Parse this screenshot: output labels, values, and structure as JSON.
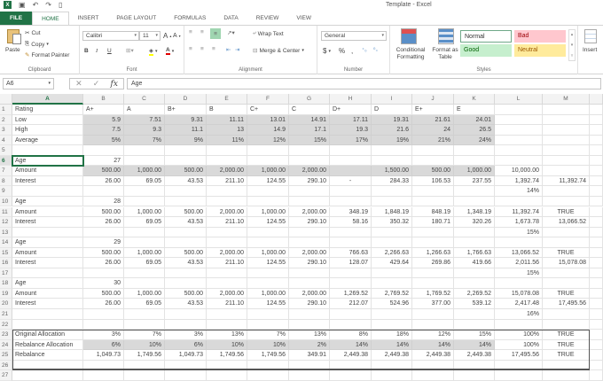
{
  "window": {
    "title": "Template - Excel"
  },
  "qat": {
    "save": "save-icon",
    "undo": "↶",
    "redo": "↷",
    "new": "new-file-icon"
  },
  "tabs": [
    "FILE",
    "HOME",
    "INSERT",
    "PAGE LAYOUT",
    "FORMULAS",
    "DATA",
    "REVIEW",
    "VIEW"
  ],
  "ribbon": {
    "clipboard": {
      "label": "Clipboard",
      "paste": "Paste",
      "cut": "Cut",
      "copy": "Copy",
      "format_painter": "Format Painter"
    },
    "font": {
      "label": "Font",
      "name": "Calibri",
      "size": "11",
      "bold": "B",
      "italic": "I",
      "underline": "U"
    },
    "alignment": {
      "label": "Alignment",
      "wrap_text": "Wrap Text",
      "merge_center": "Merge & Center"
    },
    "number": {
      "label": "Number",
      "format": "General",
      "currency": "$",
      "percent": "%",
      "comma": ","
    },
    "styles": {
      "label": "Styles",
      "conditional": "Conditional Formatting",
      "format_table": "Format as Table",
      "normal": "Normal",
      "bad": "Bad",
      "good": "Good",
      "neutral": "Neutral"
    },
    "cells": {
      "insert": "Insert"
    }
  },
  "formula_bar": {
    "name_box": "A6",
    "value": "Age",
    "fx": "fx"
  },
  "columns": [
    "A",
    "B",
    "C",
    "D",
    "E",
    "F",
    "G",
    "H",
    "I",
    "J",
    "K",
    "L",
    "M"
  ],
  "rows": [
    {
      "n": "1",
      "cells": [
        "Rating",
        "A+",
        "A",
        "B+",
        "B",
        "C+",
        "C",
        "D+",
        "D",
        "E+",
        "E",
        "",
        ""
      ]
    },
    {
      "n": "2",
      "cells": [
        "Low",
        "5.9",
        "7.51",
        "9.31",
        "11.11",
        "13.01",
        "14.91",
        "17.11",
        "19.31",
        "21.61",
        "24.01",
        "",
        ""
      ]
    },
    {
      "n": "3",
      "cells": [
        "High",
        "7.5",
        "9.3",
        "11.1",
        "13",
        "14.9",
        "17.1",
        "19.3",
        "21.6",
        "24",
        "26.5",
        "",
        ""
      ]
    },
    {
      "n": "4",
      "cells": [
        "Average",
        "5%",
        "7%",
        "9%",
        "11%",
        "12%",
        "15%",
        "17%",
        "19%",
        "21%",
        "24%",
        "",
        ""
      ]
    },
    {
      "n": "5",
      "cells": [
        "",
        "",
        "",
        "",
        "",
        "",
        "",
        "",
        "",
        "",
        "",
        "",
        ""
      ]
    },
    {
      "n": "6",
      "cells": [
        "Age",
        "27",
        "",
        "",
        "",
        "",
        "",
        "",
        "",
        "",
        "",
        "",
        ""
      ]
    },
    {
      "n": "7",
      "cells": [
        "Amount",
        "500.00",
        "1,000.00",
        "500.00",
        "2,000.00",
        "1,000.00",
        "2,000.00",
        "",
        "1,500.00",
        "500.00",
        "1,000.00",
        "10,000.00",
        ""
      ]
    },
    {
      "n": "8",
      "cells": [
        "Interest",
        "26.00",
        "69.05",
        "43.53",
        "211.10",
        "124.55",
        "290.10",
        "-",
        "284.33",
        "106.53",
        "237.55",
        "1,392.74",
        "11,392.74"
      ]
    },
    {
      "n": "9",
      "cells": [
        "",
        "",
        "",
        "",
        "",
        "",
        "",
        "",
        "",
        "",
        "",
        "14%",
        ""
      ]
    },
    {
      "n": "10",
      "cells": [
        "Age",
        "28",
        "",
        "",
        "",
        "",
        "",
        "",
        "",
        "",
        "",
        "",
        ""
      ]
    },
    {
      "n": "11",
      "cells": [
        "Amount",
        "500.00",
        "1,000.00",
        "500.00",
        "2,000.00",
        "1,000.00",
        "2,000.00",
        "348.19",
        "1,848.19",
        "848.19",
        "1,348.19",
        "11,392.74",
        "TRUE"
      ]
    },
    {
      "n": "12",
      "cells": [
        "Interest",
        "26.00",
        "69.05",
        "43.53",
        "211.10",
        "124.55",
        "290.10",
        "58.16",
        "350.32",
        "180.71",
        "320.26",
        "1,673.78",
        "13,066.52"
      ]
    },
    {
      "n": "13",
      "cells": [
        "",
        "",
        "",
        "",
        "",
        "",
        "",
        "",
        "",
        "",
        "",
        "15%",
        ""
      ]
    },
    {
      "n": "14",
      "cells": [
        "Age",
        "29",
        "",
        "",
        "",
        "",
        "",
        "",
        "",
        "",
        "",
        "",
        ""
      ]
    },
    {
      "n": "15",
      "cells": [
        "Amount",
        "500.00",
        "1,000.00",
        "500.00",
        "2,000.00",
        "1,000.00",
        "2,000.00",
        "766.63",
        "2,266.63",
        "1,266.63",
        "1,766.63",
        "13,066.52",
        "TRUE"
      ]
    },
    {
      "n": "16",
      "cells": [
        "Interest",
        "26.00",
        "69.05",
        "43.53",
        "211.10",
        "124.55",
        "290.10",
        "128.07",
        "429.64",
        "269.86",
        "419.66",
        "2,011.56",
        "15,078.08"
      ]
    },
    {
      "n": "17",
      "cells": [
        "",
        "",
        "",
        "",
        "",
        "",
        "",
        "",
        "",
        "",
        "",
        "15%",
        ""
      ]
    },
    {
      "n": "18",
      "cells": [
        "Age",
        "30",
        "",
        "",
        "",
        "",
        "",
        "",
        "",
        "",
        "",
        "",
        ""
      ]
    },
    {
      "n": "19",
      "cells": [
        "Amount",
        "500.00",
        "1,000.00",
        "500.00",
        "2,000.00",
        "1,000.00",
        "2,000.00",
        "1,269.52",
        "2,769.52",
        "1,769.52",
        "2,269.52",
        "15,078.08",
        "TRUE"
      ]
    },
    {
      "n": "20",
      "cells": [
        "Interest",
        "26.00",
        "69.05",
        "43.53",
        "211.10",
        "124.55",
        "290.10",
        "212.07",
        "524.96",
        "377.00",
        "539.12",
        "2,417.48",
        "17,495.56"
      ]
    },
    {
      "n": "21",
      "cells": [
        "",
        "",
        "",
        "",
        "",
        "",
        "",
        "",
        "",
        "",
        "",
        "16%",
        ""
      ]
    },
    {
      "n": "22",
      "cells": [
        "",
        "",
        "",
        "",
        "",
        "",
        "",
        "",
        "",
        "",
        "",
        "",
        ""
      ]
    },
    {
      "n": "23",
      "cells": [
        "Original Allocation",
        "3%",
        "7%",
        "3%",
        "13%",
        "7%",
        "13%",
        "8%",
        "18%",
        "12%",
        "15%",
        "100%",
        "TRUE"
      ]
    },
    {
      "n": "24",
      "cells": [
        "Rebalance Allocation",
        "6%",
        "10%",
        "6%",
        "10%",
        "10%",
        "2%",
        "14%",
        "14%",
        "14%",
        "14%",
        "100%",
        "TRUE"
      ]
    },
    {
      "n": "25",
      "cells": [
        "Rebalance",
        "1,049.73",
        "1,749.56",
        "1,049.73",
        "1,749.56",
        "1,749.56",
        "349.91",
        "2,449.38",
        "2,449.38",
        "2,449.38",
        "2,449.38",
        "17,495.56",
        "TRUE"
      ]
    },
    {
      "n": "26",
      "cells": [
        "",
        "",
        "",
        "",
        "",
        "",
        "",
        "",
        "",
        "",
        "",
        "",
        ""
      ]
    },
    {
      "n": "27",
      "cells": [
        "",
        "",
        "",
        "",
        "",
        "",
        "",
        "",
        "",
        "",
        "",
        "",
        ""
      ]
    }
  ],
  "colors": {
    "accent": "#217346",
    "gray_fill": "#d9d9d9",
    "bad": "#ffc7ce",
    "good": "#c6efce",
    "neutral": "#ffeb9c"
  }
}
